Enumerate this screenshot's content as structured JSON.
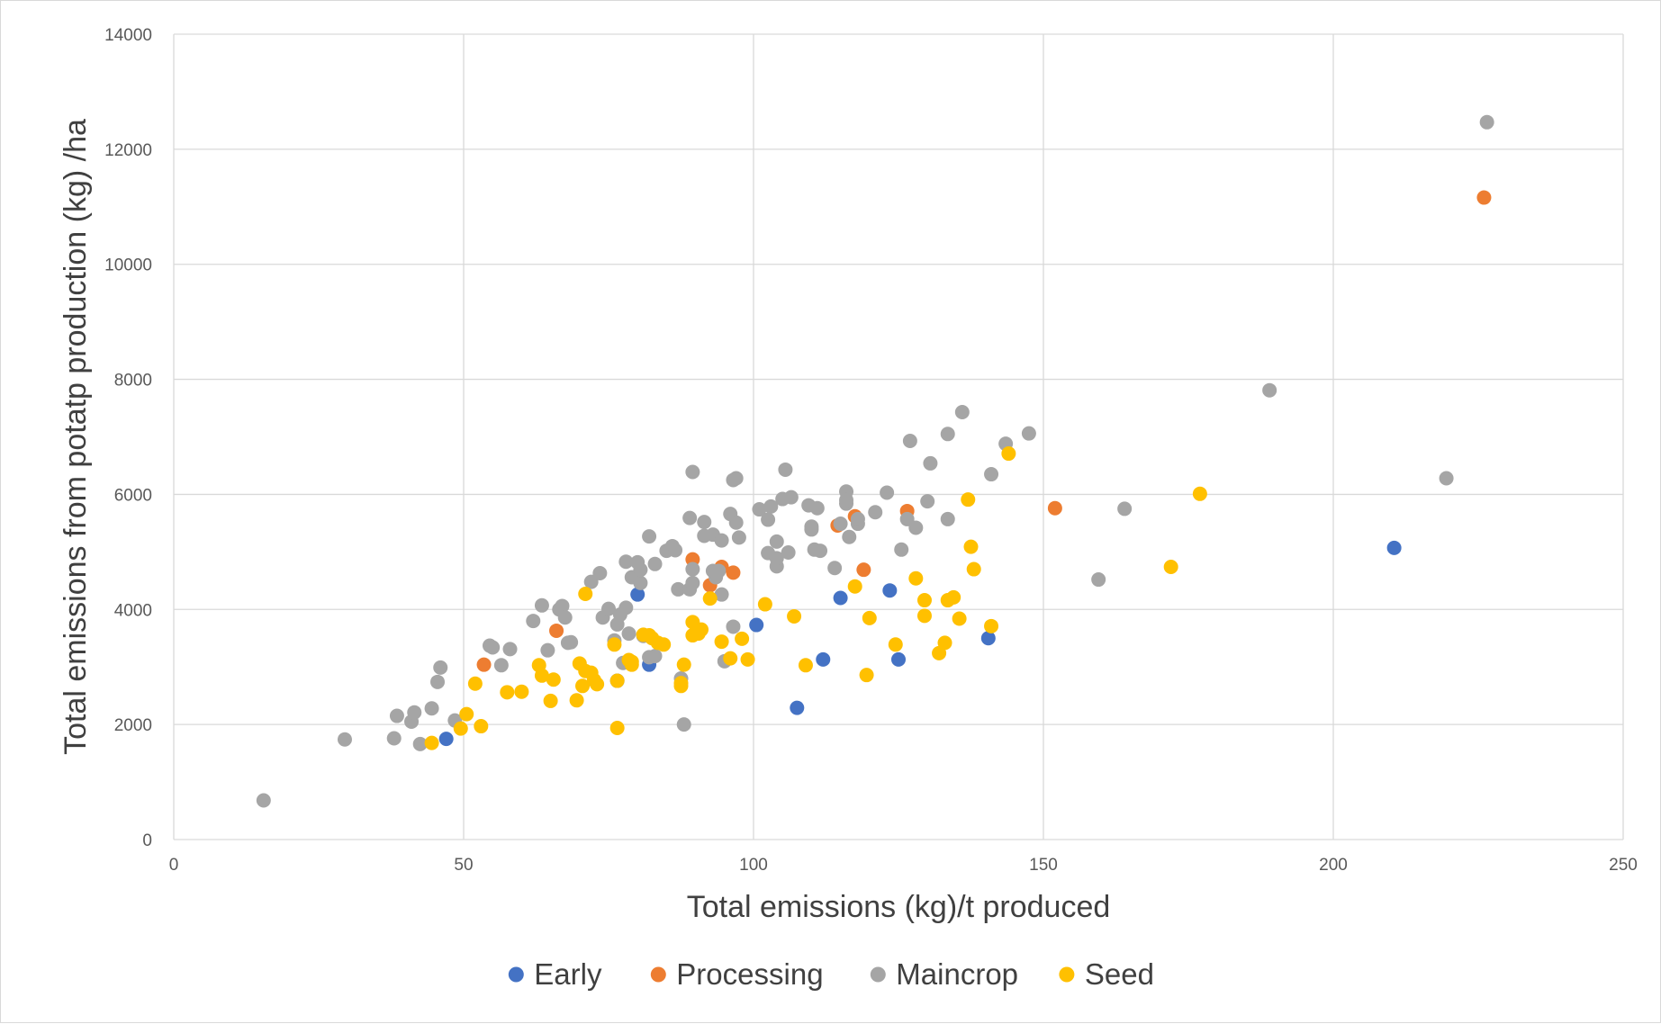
{
  "chart_data": {
    "type": "scatter",
    "title": "",
    "xlabel": "Total emissions (kg)/t produced",
    "ylabel": "Total emissions from potatp production (kg) /ha",
    "xlim": [
      0,
      250
    ],
    "ylim": [
      0,
      14000
    ],
    "x_ticks": [
      "0",
      "50",
      "100",
      "150",
      "200",
      "250"
    ],
    "y_ticks": [
      "0",
      "2000",
      "4000",
      "6000",
      "8000",
      "10000",
      "12000",
      "14000"
    ],
    "grid": true,
    "legend_position": "bottom",
    "series": [
      {
        "name": "Early",
        "color": "#4472C4",
        "points": [
          [
            47,
            1750
          ],
          [
            76.5,
            2760
          ],
          [
            80,
            4260
          ],
          [
            82,
            3040
          ],
          [
            100.5,
            3730
          ],
          [
            107.5,
            2290
          ],
          [
            112,
            3130
          ],
          [
            115,
            4200
          ],
          [
            123.5,
            4330
          ],
          [
            125,
            3130
          ],
          [
            140.5,
            3500
          ],
          [
            210.5,
            5070
          ]
        ]
      },
      {
        "name": "Processing",
        "color": "#ED7D31",
        "points": [
          [
            53.5,
            3040
          ],
          [
            66,
            3630
          ],
          [
            89.5,
            4870
          ],
          [
            92.5,
            4420
          ],
          [
            94.5,
            4740
          ],
          [
            96.5,
            4640
          ],
          [
            114.5,
            5460
          ],
          [
            117.5,
            5620
          ],
          [
            119,
            4690
          ],
          [
            126.5,
            5710
          ],
          [
            152,
            5760
          ],
          [
            226,
            11160
          ]
        ]
      },
      {
        "name": "Maincrop",
        "color": "#A5A5A5",
        "points": [
          [
            15.5,
            680
          ],
          [
            29.5,
            1740
          ],
          [
            38,
            1760
          ],
          [
            38.5,
            2150
          ],
          [
            41,
            2050
          ],
          [
            41.5,
            2210
          ],
          [
            42.5,
            1660
          ],
          [
            44.5,
            2280
          ],
          [
            45.5,
            2740
          ],
          [
            46,
            2990
          ],
          [
            48.5,
            2070
          ],
          [
            54.5,
            3370
          ],
          [
            55,
            3340
          ],
          [
            56.5,
            3030
          ],
          [
            58,
            3310
          ],
          [
            62,
            3800
          ],
          [
            63.5,
            4070
          ],
          [
            64.5,
            3290
          ],
          [
            66.5,
            4000
          ],
          [
            67,
            4060
          ],
          [
            67.5,
            3860
          ],
          [
            68,
            3420
          ],
          [
            68.5,
            3430
          ],
          [
            72,
            4480
          ],
          [
            73.5,
            4630
          ],
          [
            74,
            3860
          ],
          [
            75,
            4010
          ],
          [
            76,
            3460
          ],
          [
            76.5,
            3740
          ],
          [
            77,
            3910
          ],
          [
            77.5,
            3070
          ],
          [
            78,
            4830
          ],
          [
            78,
            4030
          ],
          [
            78.5,
            3580
          ],
          [
            79,
            4560
          ],
          [
            80,
            4820
          ],
          [
            80.5,
            4460
          ],
          [
            80.5,
            4690
          ],
          [
            81,
            3540
          ],
          [
            82,
            5270
          ],
          [
            82,
            3170
          ],
          [
            83,
            4790
          ],
          [
            83,
            3190
          ],
          [
            85,
            5020
          ],
          [
            86,
            5100
          ],
          [
            86.5,
            5030
          ],
          [
            87,
            4350
          ],
          [
            87.5,
            2800
          ],
          [
            88,
            2000
          ],
          [
            89,
            4350
          ],
          [
            89,
            5590
          ],
          [
            89.5,
            4700
          ],
          [
            89.5,
            6390
          ],
          [
            89.5,
            4460
          ],
          [
            91.5,
            5520
          ],
          [
            91.5,
            5280
          ],
          [
            93,
            5300
          ],
          [
            93,
            4670
          ],
          [
            93.5,
            4560
          ],
          [
            94,
            4670
          ],
          [
            94.5,
            4260
          ],
          [
            94.5,
            5200
          ],
          [
            95,
            3100
          ],
          [
            96,
            5660
          ],
          [
            96.5,
            6250
          ],
          [
            96.5,
            3700
          ],
          [
            97,
            6280
          ],
          [
            97,
            5510
          ],
          [
            97.5,
            5250
          ],
          [
            101,
            5740
          ],
          [
            102.5,
            5560
          ],
          [
            102.5,
            4980
          ],
          [
            103,
            5790
          ],
          [
            104,
            5180
          ],
          [
            104,
            4750
          ],
          [
            104,
            4890
          ],
          [
            105,
            5920
          ],
          [
            105.5,
            6430
          ],
          [
            106,
            4990
          ],
          [
            106.5,
            5950
          ],
          [
            109.5,
            5810
          ],
          [
            110,
            5390
          ],
          [
            110,
            5440
          ],
          [
            110.5,
            5040
          ],
          [
            111,
            5760
          ],
          [
            111.5,
            5020
          ],
          [
            114,
            4720
          ],
          [
            115,
            5490
          ],
          [
            116,
            6050
          ],
          [
            116,
            5840
          ],
          [
            116,
            5900
          ],
          [
            116.5,
            5260
          ],
          [
            118,
            5490
          ],
          [
            118,
            5570
          ],
          [
            121,
            5690
          ],
          [
            123,
            6030
          ],
          [
            125.5,
            5040
          ],
          [
            126.5,
            5570
          ],
          [
            127,
            6930
          ],
          [
            128,
            5420
          ],
          [
            130,
            5880
          ],
          [
            130.5,
            6540
          ],
          [
            133.5,
            5570
          ],
          [
            133.5,
            7050
          ],
          [
            136,
            7430
          ],
          [
            141,
            6350
          ],
          [
            143.5,
            6880
          ],
          [
            147.5,
            7060
          ],
          [
            159.5,
            4520
          ],
          [
            164,
            5750
          ],
          [
            189,
            7810
          ],
          [
            219.5,
            6280
          ],
          [
            226.5,
            12470
          ]
        ]
      },
      {
        "name": "Seed",
        "color": "#FFC000",
        "points": [
          [
            44.5,
            1680
          ],
          [
            49.5,
            1930
          ],
          [
            50.5,
            2180
          ],
          [
            52,
            2710
          ],
          [
            53,
            1970
          ],
          [
            57.5,
            2560
          ],
          [
            60,
            2570
          ],
          [
            63,
            3030
          ],
          [
            63.5,
            2850
          ],
          [
            65,
            2410
          ],
          [
            65.5,
            2780
          ],
          [
            69.5,
            2420
          ],
          [
            70,
            3060
          ],
          [
            70.5,
            2670
          ],
          [
            71,
            4270
          ],
          [
            71,
            2930
          ],
          [
            72,
            2900
          ],
          [
            72.5,
            2770
          ],
          [
            73,
            2700
          ],
          [
            76,
            3390
          ],
          [
            76.5,
            1940
          ],
          [
            76.5,
            2760
          ],
          [
            78.5,
            3120
          ],
          [
            79,
            3090
          ],
          [
            79,
            3040
          ],
          [
            81,
            3560
          ],
          [
            82,
            3550
          ],
          [
            82.5,
            3500
          ],
          [
            83.5,
            3420
          ],
          [
            84.5,
            3390
          ],
          [
            87.5,
            2670
          ],
          [
            87.5,
            2720
          ],
          [
            88,
            3040
          ],
          [
            89.5,
            3550
          ],
          [
            89.5,
            3780
          ],
          [
            90.5,
            3580
          ],
          [
            91,
            3650
          ],
          [
            92.5,
            4190
          ],
          [
            94.5,
            3440
          ],
          [
            96,
            3150
          ],
          [
            98,
            3490
          ],
          [
            99,
            3130
          ],
          [
            102,
            4090
          ],
          [
            107,
            3880
          ],
          [
            109,
            3030
          ],
          [
            117.5,
            4400
          ],
          [
            119.5,
            2860
          ],
          [
            120,
            3850
          ],
          [
            124.5,
            3390
          ],
          [
            128,
            4540
          ],
          [
            129.5,
            4160
          ],
          [
            129.5,
            3890
          ],
          [
            132,
            3240
          ],
          [
            133,
            3420
          ],
          [
            133.5,
            4160
          ],
          [
            134.5,
            4210
          ],
          [
            135.5,
            3840
          ],
          [
            137,
            5910
          ],
          [
            137.5,
            5090
          ],
          [
            138,
            4700
          ],
          [
            141,
            3710
          ],
          [
            144,
            6710
          ],
          [
            172,
            4740
          ],
          [
            177,
            6010
          ]
        ]
      }
    ]
  }
}
